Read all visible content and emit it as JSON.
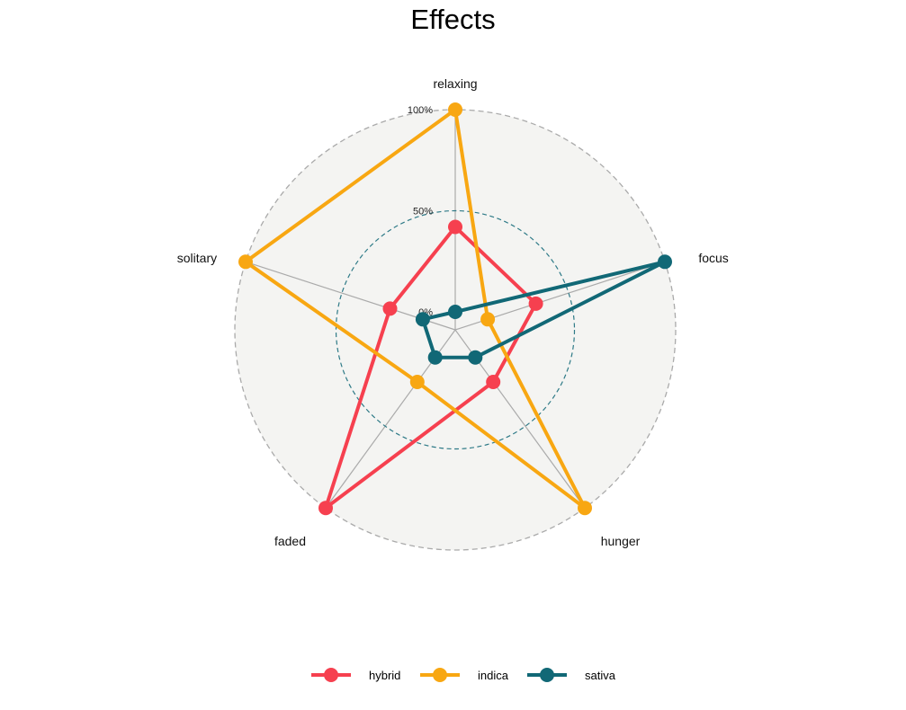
{
  "chart_data": {
    "type": "radar",
    "title": "Effects",
    "categories": [
      "relaxing",
      "focus",
      "hunger",
      "faded",
      "solitary"
    ],
    "radial_ticks": [
      "0%",
      "50%",
      "100%"
    ],
    "rlim": [
      0,
      100
    ],
    "series": [
      {
        "name": "hybrid",
        "color": "#F6404F",
        "values": [
          42,
          33,
          23,
          100,
          25
        ]
      },
      {
        "name": "indica",
        "color": "#F8A712",
        "values": [
          100,
          8,
          100,
          23,
          100
        ]
      },
      {
        "name": "sativa",
        "color": "#116876",
        "values": [
          0,
          100,
          8,
          8,
          8
        ]
      }
    ],
    "legend_position": "bottom"
  }
}
